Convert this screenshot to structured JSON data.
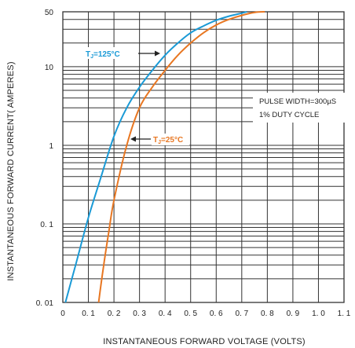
{
  "chart_data": {
    "type": "line",
    "xlabel": "INSTANTANEOUS FORWARD VOLTAGE (VOLTS)",
    "ylabel": "INSTANTANEOUS FORWARD CURRENT( AMPERES)",
    "x_scale": "linear",
    "y_scale": "log",
    "xlim": [
      0,
      1.1
    ],
    "ylim": [
      0.01,
      50
    ],
    "grid": true,
    "x_ticks": [
      "0",
      "0. 1",
      "0. 2",
      "0. 3",
      "0. 4",
      "0. 5",
      "0. 6",
      "0. 7",
      "0. 8",
      "0. 9",
      "1. 0",
      "1. 1"
    ],
    "y_ticks": [
      {
        "label": "0. 01",
        "value": 0.01
      },
      {
        "label": "0. 1",
        "value": 0.1
      },
      {
        "label": "1",
        "value": 1
      },
      {
        "label": "10",
        "value": 10
      },
      {
        "label": "50",
        "value": 50
      }
    ],
    "annotation": {
      "line1": "PULSE WIDTH=300µS",
      "line2": "1% DUTY CYCLE"
    },
    "series": [
      {
        "name": "T₁=125°C",
        "name_parts": {
          "main": "T",
          "sub": "J",
          "rest": "=125°C"
        },
        "color": "#1a9ad6",
        "x": [
          0.01,
          0.05,
          0.1,
          0.15,
          0.2,
          0.25,
          0.3,
          0.35,
          0.4,
          0.45,
          0.5,
          0.55,
          0.6,
          0.65,
          0.7,
          0.72
        ],
        "y": [
          0.01,
          0.03,
          0.12,
          0.4,
          1.3,
          3,
          5.5,
          9,
          14,
          20,
          27,
          33,
          39,
          44,
          48,
          50
        ]
      },
      {
        "name": "T₁=25°C",
        "name_parts": {
          "main": "T",
          "sub": "J",
          "rest": "=25°C"
        },
        "color": "#e87722",
        "x": [
          0.14,
          0.16,
          0.18,
          0.2,
          0.25,
          0.3,
          0.35,
          0.4,
          0.45,
          0.5,
          0.55,
          0.6,
          0.65,
          0.7,
          0.75,
          0.79
        ],
        "y": [
          0.01,
          0.03,
          0.08,
          0.2,
          1,
          3,
          5.5,
          9,
          14,
          20,
          27,
          34,
          40,
          45,
          49,
          50
        ]
      }
    ]
  }
}
